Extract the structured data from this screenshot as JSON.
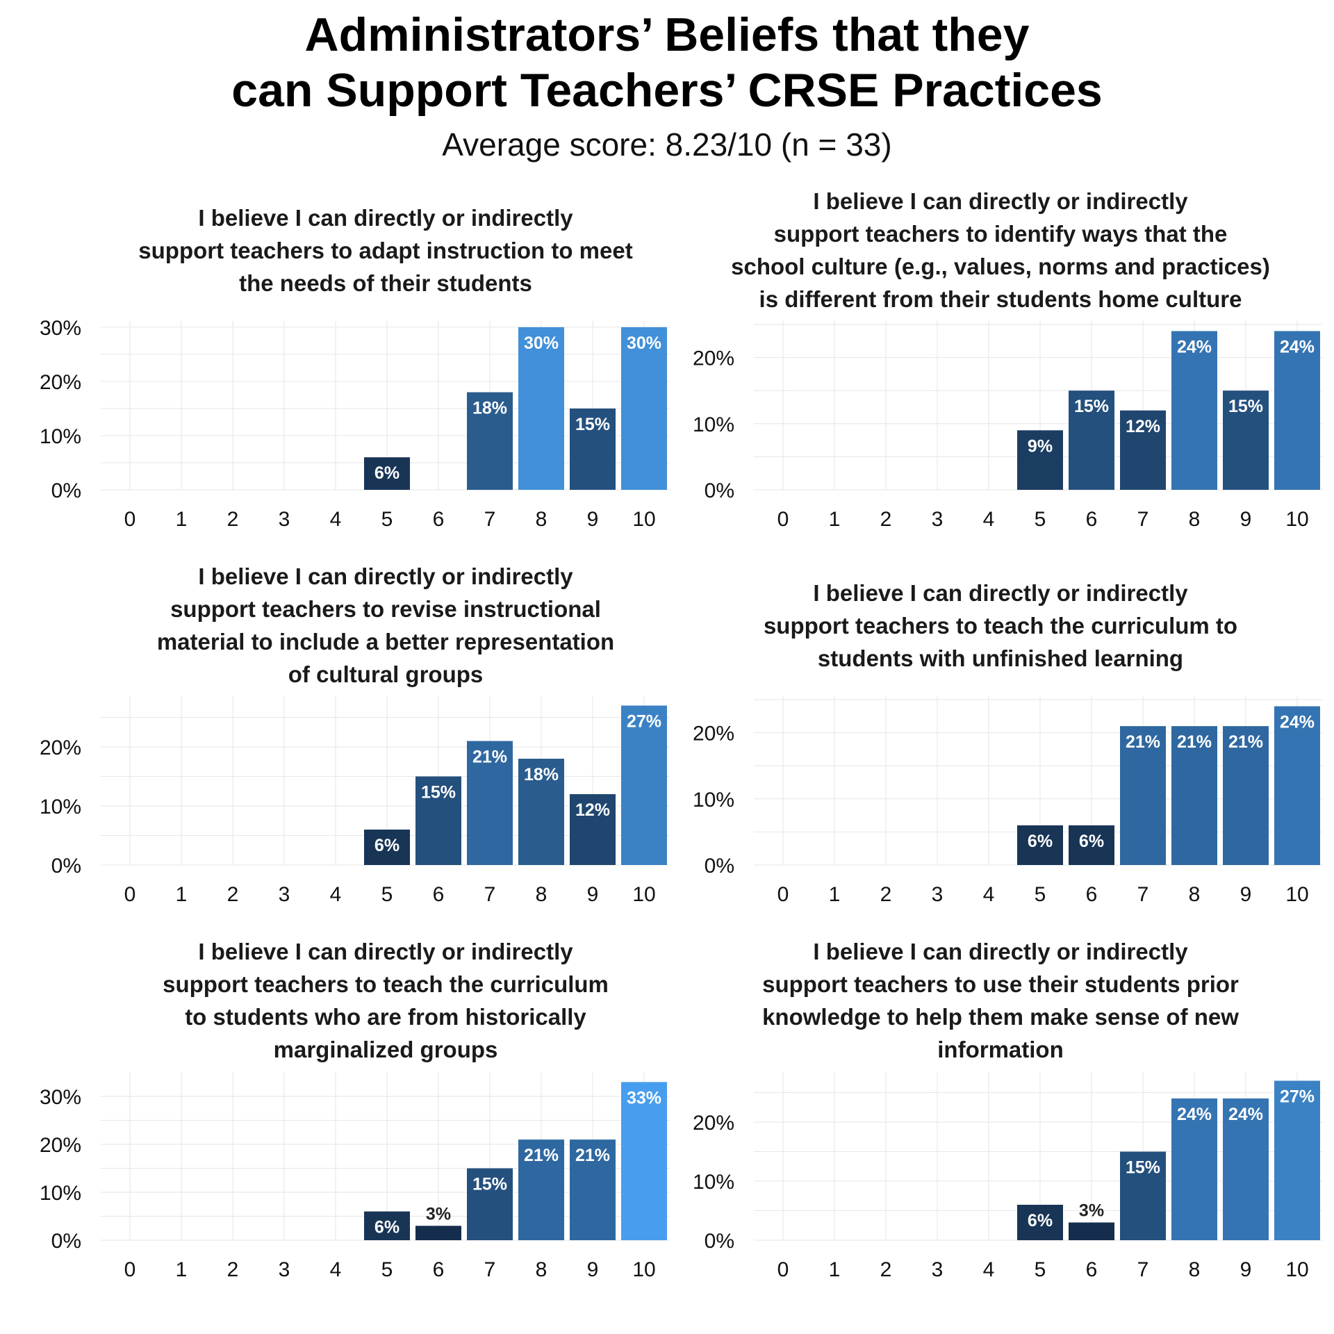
{
  "title_lines": [
    "Administrators’ Beliefs that they",
    "can Support Teachers’ CRSE Practices"
  ],
  "subtitle": "Average score: 8.23/10 (n = 33)",
  "colors": {
    "low": "#132a47",
    "high": "#4aa3f5",
    "grid": "#e6e6e6",
    "label": "#ffffff",
    "label_outside": "#222222"
  },
  "chart_data": [
    {
      "type": "bar",
      "title_lines": [
        "I believe I can directly or indirectly",
        "support teachers to adapt instruction to meet",
        "the needs of their students"
      ],
      "categories": [
        "0",
        "1",
        "2",
        "3",
        "4",
        "5",
        "6",
        "7",
        "8",
        "9",
        "10"
      ],
      "values": [
        0,
        0,
        0,
        0,
        0,
        6,
        0,
        18,
        30,
        15,
        30
      ],
      "labels": [
        "",
        "",
        "",
        "",
        "",
        "6%",
        "",
        "18%",
        "30%",
        "15%",
        "30%"
      ],
      "yticks": [
        0,
        10,
        20,
        30
      ],
      "ytick_labels": [
        "0%",
        "10%",
        "20%",
        "30%"
      ],
      "ylim": [
        0,
        30.5
      ],
      "xlabel": "",
      "ylabel": "",
      "grid": true
    },
    {
      "type": "bar",
      "title_lines": [
        "I believe I can directly or indirectly",
        "support teachers to identify ways that the",
        "school culture (e.g., values, norms and practices)",
        "is different from their students home culture"
      ],
      "categories": [
        "0",
        "1",
        "2",
        "3",
        "4",
        "5",
        "6",
        "7",
        "8",
        "9",
        "10"
      ],
      "values": [
        0,
        0,
        0,
        0,
        0,
        9,
        15,
        12,
        24,
        15,
        24
      ],
      "labels": [
        "",
        "",
        "",
        "",
        "",
        "9%",
        "15%",
        "12%",
        "24%",
        "15%",
        "24%"
      ],
      "yticks": [
        0,
        10,
        20
      ],
      "ytick_labels": [
        "0%",
        "10%",
        "20%"
      ],
      "ylim": [
        0,
        25
      ],
      "xlabel": "",
      "ylabel": "",
      "grid": true
    },
    {
      "type": "bar",
      "title_lines": [
        "I believe I can directly or indirectly",
        "support teachers to revise instructional",
        "material to include a better representation",
        "of cultural groups"
      ],
      "categories": [
        "0",
        "1",
        "2",
        "3",
        "4",
        "5",
        "6",
        "7",
        "8",
        "9",
        "10"
      ],
      "values": [
        0,
        0,
        0,
        0,
        0,
        6,
        15,
        21,
        18,
        12,
        27
      ],
      "labels": [
        "",
        "",
        "",
        "",
        "",
        "6%",
        "15%",
        "21%",
        "18%",
        "12%",
        "27%"
      ],
      "yticks": [
        0,
        10,
        20
      ],
      "ytick_labels": [
        "0%",
        "10%",
        "20%"
      ],
      "ylim": [
        0,
        28
      ],
      "xlabel": "",
      "ylabel": "",
      "grid": true
    },
    {
      "type": "bar",
      "title_lines": [
        "I believe I can directly or indirectly",
        "support teachers to teach the curriculum to",
        "students with unfinished learning"
      ],
      "categories": [
        "0",
        "1",
        "2",
        "3",
        "4",
        "5",
        "6",
        "7",
        "8",
        "9",
        "10"
      ],
      "values": [
        0,
        0,
        0,
        0,
        0,
        6,
        6,
        21,
        21,
        21,
        24
      ],
      "labels": [
        "",
        "",
        "",
        "",
        "",
        "6%",
        "6%",
        "21%",
        "21%",
        "21%",
        "24%"
      ],
      "yticks": [
        0,
        10,
        20
      ],
      "ytick_labels": [
        "0%",
        "10%",
        "20%"
      ],
      "ylim": [
        0,
        25
      ],
      "xlabel": "",
      "ylabel": "",
      "grid": true
    },
    {
      "type": "bar",
      "title_lines": [
        "I believe I can directly or indirectly",
        "support teachers to teach the curriculum",
        "to students who are from historically",
        "marginalized groups"
      ],
      "categories": [
        "0",
        "1",
        "2",
        "3",
        "4",
        "5",
        "6",
        "7",
        "8",
        "9",
        "10"
      ],
      "values": [
        0,
        0,
        0,
        0,
        0,
        6,
        3,
        15,
        21,
        21,
        33
      ],
      "labels": [
        "",
        "",
        "",
        "",
        "",
        "6%",
        "3%",
        "15%",
        "21%",
        "21%",
        "33%"
      ],
      "yticks": [
        0,
        10,
        20,
        30
      ],
      "ytick_labels": [
        "0%",
        "10%",
        "20%",
        "30%"
      ],
      "ylim": [
        0,
        34.5
      ],
      "xlabel": "",
      "ylabel": "",
      "grid": true
    },
    {
      "type": "bar",
      "title_lines": [
        "I believe I can directly or indirectly",
        "support teachers to use their students prior",
        "knowledge to help them make sense of new",
        "information"
      ],
      "categories": [
        "0",
        "1",
        "2",
        "3",
        "4",
        "5",
        "6",
        "7",
        "8",
        "9",
        "10"
      ],
      "values": [
        0,
        0,
        0,
        0,
        0,
        6,
        3,
        15,
        24,
        24,
        27
      ],
      "labels": [
        "",
        "",
        "",
        "",
        "",
        "6%",
        "3%",
        "15%",
        "24%",
        "24%",
        "27%"
      ],
      "yticks": [
        0,
        10,
        20
      ],
      "ytick_labels": [
        "0%",
        "10%",
        "20%"
      ],
      "ylim": [
        0,
        28
      ],
      "xlabel": "",
      "ylabel": "",
      "grid": true
    }
  ]
}
